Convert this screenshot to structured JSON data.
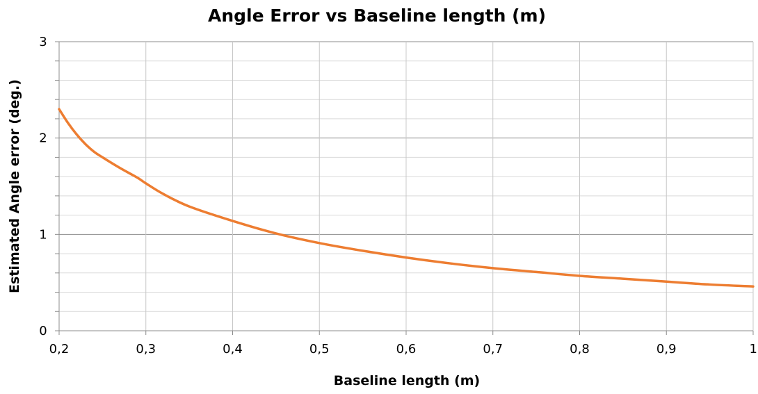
{
  "chart_data": {
    "type": "line",
    "title": "Angle Error vs Baseline length (m)",
    "xlabel": "Baseline length (m)",
    "ylabel": "Estimated Angle error (deg.)",
    "xlim": [
      0.2,
      1.0
    ],
    "ylim": [
      0,
      3
    ],
    "x_ticks": [
      "0,2",
      "0,3",
      "0,4",
      "0,5",
      "0,6",
      "0,7",
      "0,8",
      "0,9",
      "1"
    ],
    "x_tick_values": [
      0.2,
      0.3,
      0.4,
      0.5,
      0.6,
      0.7,
      0.8,
      0.9,
      1.0
    ],
    "y_ticks": [
      "0",
      "1",
      "2",
      "3"
    ],
    "y_tick_values": [
      0,
      1,
      2,
      3
    ],
    "grid": true,
    "legend": "none",
    "series": [
      {
        "color": "#ED7D31",
        "x": [
          0.2,
          0.21,
          0.22,
          0.23,
          0.24,
          0.25,
          0.27,
          0.29,
          0.3,
          0.32,
          0.35,
          0.4,
          0.45,
          0.5,
          0.55,
          0.6,
          0.65,
          0.7,
          0.75,
          0.8,
          0.85,
          0.9,
          0.95,
          1.0
        ],
        "y": [
          2.3,
          2.16,
          2.04,
          1.94,
          1.86,
          1.8,
          1.69,
          1.59,
          1.53,
          1.42,
          1.29,
          1.14,
          1.01,
          0.91,
          0.83,
          0.76,
          0.7,
          0.65,
          0.61,
          0.57,
          0.54,
          0.51,
          0.48,
          0.46
        ]
      }
    ]
  }
}
